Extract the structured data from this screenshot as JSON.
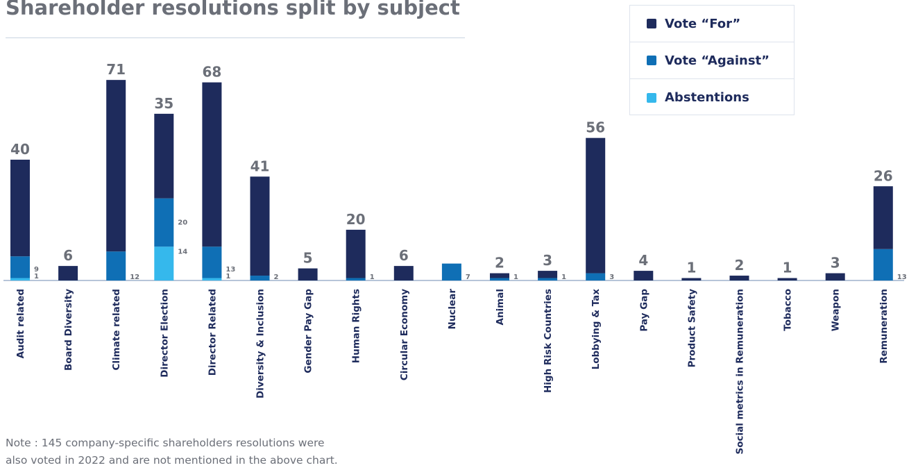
{
  "chart_data": {
    "type": "bar",
    "stacked": true,
    "title": "Shareholder resolutions split by subject",
    "categories": [
      "Audit related",
      "Board Diversity",
      "Climate related",
      "Director Election",
      "Director Related",
      "Diversity & Inclusion",
      "Gender Pay Gap",
      "Human Rights",
      "Circular Economy",
      "Nuclear",
      "Animal",
      "High Risk Countries",
      "Lobbying & Tax",
      "Pay Gap",
      "Product Safety",
      "Social metrics in Remuneration",
      "Tobacco",
      "Weapon",
      "Remuneration"
    ],
    "series": [
      {
        "name": "Vote “For”",
        "color": "#1e2b5c",
        "values": [
          40,
          6,
          71,
          35,
          68,
          41,
          5,
          20,
          6,
          0,
          2,
          3,
          56,
          4,
          1,
          2,
          1,
          3,
          26
        ],
        "labels": [
          "40",
          "6",
          "71",
          "35",
          "68",
          "41",
          "5",
          "20",
          "6",
          "",
          "2",
          "3",
          "56",
          "4",
          "1",
          "2",
          "1",
          "3",
          "26"
        ]
      },
      {
        "name": "Vote “Against”",
        "color": "#0f6fb5",
        "values": [
          9,
          0,
          12,
          20,
          13,
          2,
          0,
          1,
          0,
          7,
          1,
          1,
          3,
          0,
          0,
          0,
          0,
          0,
          13
        ],
        "labels": [
          "9",
          "",
          "12",
          "20",
          "13",
          "2",
          "",
          "1",
          "",
          "7",
          "1",
          "1",
          "3",
          "",
          "",
          "",
          "",
          "",
          "13"
        ]
      },
      {
        "name": "Abstentions",
        "color": "#35b8ec",
        "values": [
          1,
          0,
          0,
          14,
          1,
          0,
          0,
          0,
          0,
          0,
          0,
          0,
          0,
          0,
          0,
          0,
          0,
          0,
          0
        ],
        "labels": [
          "1",
          "",
          "",
          "14",
          "1",
          "",
          "",
          "",
          "",
          "",
          "",
          "",
          "",
          "",
          "",
          "",
          "",
          "",
          ""
        ]
      }
    ],
    "legend": "top-right",
    "grid": false
  },
  "note": "Note : 145 company-specific shareholders resolutions were\nalso voted in 2022 and are not mentioned in the above chart."
}
